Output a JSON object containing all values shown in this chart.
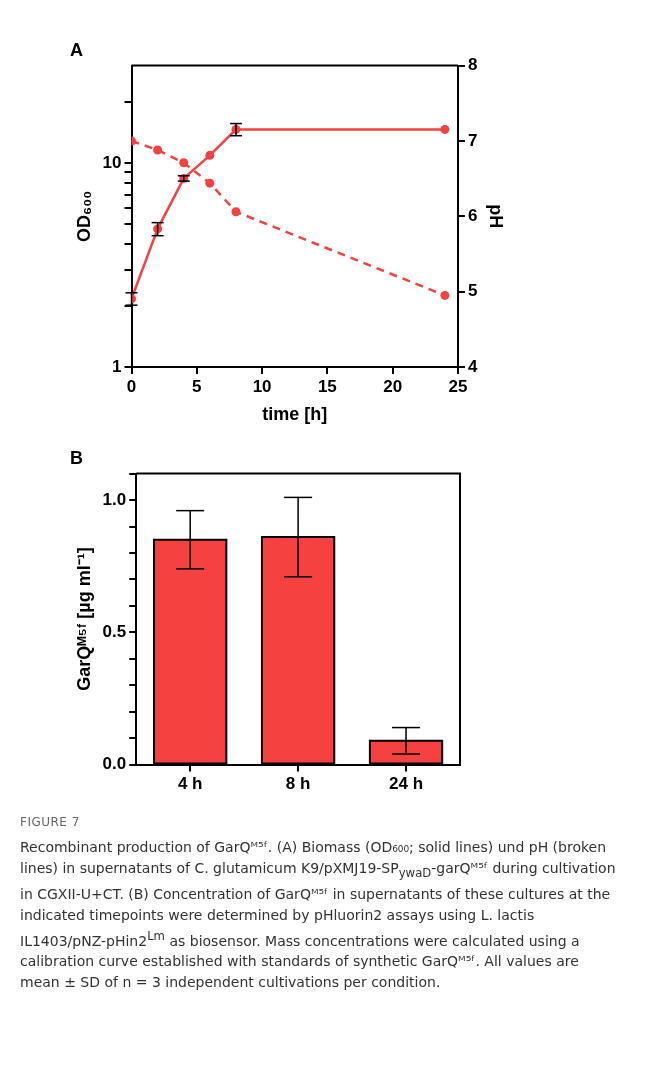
{
  "chart_data": [
    {
      "type": "line",
      "title": "A",
      "xlabel": "time [h]",
      "ylabel": "OD₆₀₀",
      "y2label": "pH",
      "xlim": [
        0,
        25
      ],
      "xticks": [
        0,
        5,
        10,
        15,
        20,
        25
      ],
      "ylim": [
        1,
        30
      ],
      "yticks": [
        1,
        {
          "value": 2,
          "label": null
        },
        {
          "value": 3,
          "label": null
        },
        {
          "value": 4,
          "label": null
        },
        {
          "value": 5,
          "label": null
        },
        {
          "value": 6,
          "label": null
        },
        {
          "value": 7,
          "label": null
        },
        {
          "value": 8,
          "label": null
        },
        {
          "value": 9,
          "label": null
        },
        10,
        {
          "value": 20,
          "label": null
        }
      ],
      "log": "y",
      "y2lim": [
        4,
        8
      ],
      "y2ticks": [
        4,
        5,
        6,
        7,
        8
      ],
      "marker": "circle",
      "grid": false,
      "series": [
        {
          "color": "#f44242",
          "line_style": "solid",
          "x": [
            0,
            2,
            4,
            6,
            8,
            24
          ],
          "values": [
            2.16,
            4.75,
            8.4,
            10.9,
            14.6,
            14.6
          ],
          "errors": [
            0.15,
            0.35,
            0.25,
            null,
            1.0,
            null
          ]
        },
        {
          "color": "#f44242",
          "line_style": "dashed",
          "axis": "y2",
          "x": [
            0,
            2,
            4,
            6,
            8,
            24
          ],
          "values": [
            7.0,
            6.88,
            6.71,
            6.44,
            6.06,
            4.95
          ]
        }
      ]
    },
    {
      "type": "bar",
      "title": "B",
      "ylabel": "GarQᴹ⁵ᶠ [µg ml⁻¹]",
      "categories": [
        "4 h",
        "8 h",
        "24 h"
      ],
      "values": [
        0.85,
        0.86,
        0.09
      ],
      "errors": [
        0.11,
        0.15,
        0.05
      ],
      "color": "#f64141",
      "ylim": [
        0,
        1.1
      ],
      "yticks": [
        {
          "value": 0,
          "label": "0.0"
        },
        {
          "value": 0.1,
          "label": null
        },
        {
          "value": 0.2,
          "label": null
        },
        {
          "value": 0.3,
          "label": null
        },
        {
          "value": 0.4,
          "label": null
        },
        {
          "value": 0.5,
          "label": "0.5"
        },
        {
          "value": 0.6,
          "label": null
        },
        {
          "value": 0.7,
          "label": null
        },
        {
          "value": 0.8,
          "label": null
        },
        {
          "value": 0.9,
          "label": null
        },
        {
          "value": 1,
          "label": "1.0"
        },
        {
          "value": 1.1,
          "label": null
        }
      ],
      "grid": false,
      "annotations": [
        "FIGURE 7",
        "Recombinant production of GarQᴹ⁵ᶠ. (A) Biomass (OD₆₀₀; solid lines) und pH (broken lines) in supernatants of C. glutamicum K9/pXMJ19-SP$_{ywaD}$-garQᴹ⁵ᶠ during cultivation in CGXII-U+CT. (B) Concentration of GarQᴹ⁵ᶠ in supernatants of these cultures at the indicated timepoints were determined by pHluorin2 assays using L. lactis IL1403/pNZ-pHin2$^{Lm}$ as biosensor. Mass concentrations were calculated using a calibration curve established with standards of synthetic GarQᴹ⁵ᶠ. All values are mean ± SD of n = 3 independent cultivations per condition."
      ]
    }
  ]
}
